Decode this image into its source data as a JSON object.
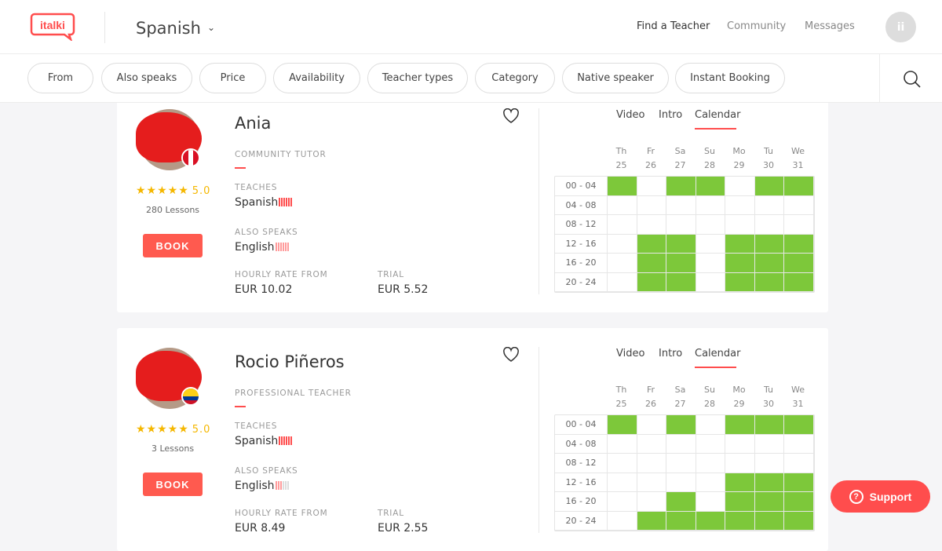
{
  "header": {
    "logo": "italki",
    "language": "Spanish",
    "nav": [
      "Find a Teacher",
      "Community",
      "Messages"
    ],
    "avatar_initial": "ii"
  },
  "filters": [
    "From",
    "Also speaks",
    "Price",
    "Availability",
    "Teacher types",
    "Category",
    "Native speaker",
    "Instant Booking"
  ],
  "calendar_days": [
    {
      "d": "Th",
      "n": "25"
    },
    {
      "d": "Fr",
      "n": "26"
    },
    {
      "d": "Sa",
      "n": "27"
    },
    {
      "d": "Su",
      "n": "28"
    },
    {
      "d": "Mo",
      "n": "29"
    },
    {
      "d": "Tu",
      "n": "30"
    },
    {
      "d": "We",
      "n": "31"
    }
  ],
  "time_slots": [
    "00 - 04",
    "04 - 08",
    "08 - 12",
    "12 - 16",
    "16 - 20",
    "20 - 24"
  ],
  "tabs": [
    "Video",
    "Intro",
    "Calendar"
  ],
  "labels": {
    "teaches": "TEACHES",
    "also_speaks": "ALSO SPEAKS",
    "rate": "HOURLY RATE FROM",
    "trial": "TRIAL",
    "book": "BOOK"
  },
  "colors": {
    "accent": "#ff4d4d",
    "available": "#7dc83a",
    "star": "#f5b700"
  },
  "teachers": [
    {
      "name": "Ania",
      "type": "COMMUNITY TUTOR",
      "rating": "5.0",
      "lessons": "280 Lessons",
      "teaches": "Spanish",
      "teaches_level": 6,
      "speaks": "English",
      "speaks_level": 6,
      "rate": "EUR 10.02",
      "trial": "EUR 5.52",
      "flag": "peru",
      "availability": [
        [
          1,
          0,
          1,
          1,
          0,
          1,
          1
        ],
        [
          0,
          0,
          0,
          0,
          0,
          0,
          0
        ],
        [
          0,
          0,
          0,
          0,
          0,
          0,
          0
        ],
        [
          0,
          1,
          1,
          0,
          1,
          1,
          1
        ],
        [
          0,
          1,
          1,
          0,
          1,
          1,
          1
        ],
        [
          0,
          1,
          1,
          0,
          1,
          1,
          1
        ]
      ]
    },
    {
      "name": "Rocio Piñeros",
      "type": "PROFESSIONAL TEACHER",
      "rating": "5.0",
      "lessons": "3 Lessons",
      "teaches": "Spanish",
      "teaches_level": 6,
      "speaks": "English",
      "speaks_level": 3,
      "rate": "EUR 8.49",
      "trial": "EUR 2.55",
      "flag": "colombia",
      "availability": [
        [
          1,
          0,
          1,
          0,
          1,
          1,
          1
        ],
        [
          0,
          0,
          0,
          0,
          0,
          0,
          0
        ],
        [
          0,
          0,
          0,
          0,
          0,
          0,
          0
        ],
        [
          0,
          0,
          0,
          0,
          1,
          1,
          1
        ],
        [
          0,
          0,
          1,
          0,
          1,
          1,
          1
        ],
        [
          0,
          1,
          1,
          1,
          1,
          1,
          1
        ]
      ]
    }
  ],
  "support": "Support"
}
